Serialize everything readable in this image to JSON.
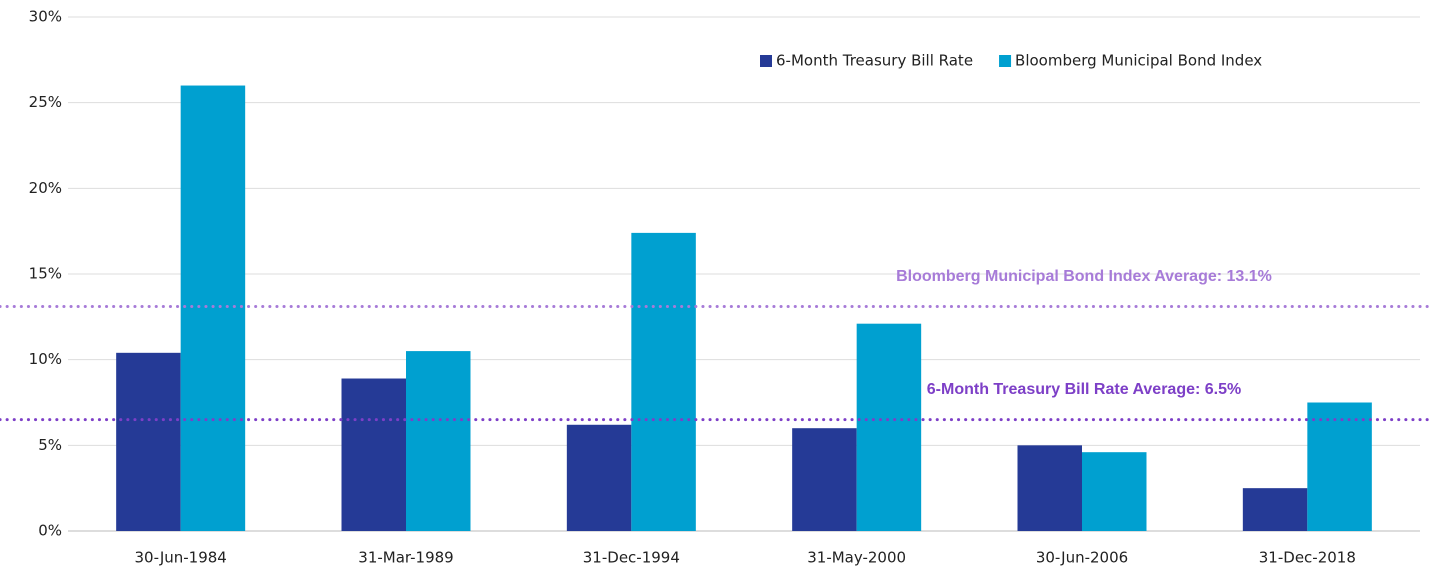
{
  "chart_data": {
    "type": "bar",
    "categories": [
      "30-Jun-1984",
      "31-Mar-1989",
      "31-Dec-1994",
      "31-May-2000",
      "30-Jun-2006",
      "31-Dec-2018"
    ],
    "series": [
      {
        "name": "6-Month Treasury Bill Rate",
        "color": "#253a96",
        "values": [
          10.4,
          8.9,
          6.2,
          6.0,
          5.0,
          2.5
        ]
      },
      {
        "name": "Bloomberg Municipal Bond Index",
        "color": "#00a0d0",
        "values": [
          26.0,
          10.5,
          17.4,
          12.1,
          4.6,
          7.5
        ]
      }
    ],
    "reference_lines": [
      {
        "value": 13.1,
        "label": "Bloomberg Municipal Bond Index Average: 13.1%",
        "color": "#a77bd8"
      },
      {
        "value": 6.5,
        "label": "6-Month Treasury Bill Rate Average: 6.5%",
        "color": "#7d3fc7"
      }
    ],
    "ylim": [
      0,
      30
    ],
    "yticks": [
      {
        "value": 0,
        "label": "0%"
      },
      {
        "value": 5,
        "label": "5%"
      },
      {
        "value": 10,
        "label": "10%"
      },
      {
        "value": 15,
        "label": "15%"
      },
      {
        "value": 20,
        "label": "20%"
      },
      {
        "value": 25,
        "label": "25%"
      },
      {
        "value": 30,
        "label": "30%"
      }
    ],
    "grid": true,
    "legend": "top-right"
  }
}
